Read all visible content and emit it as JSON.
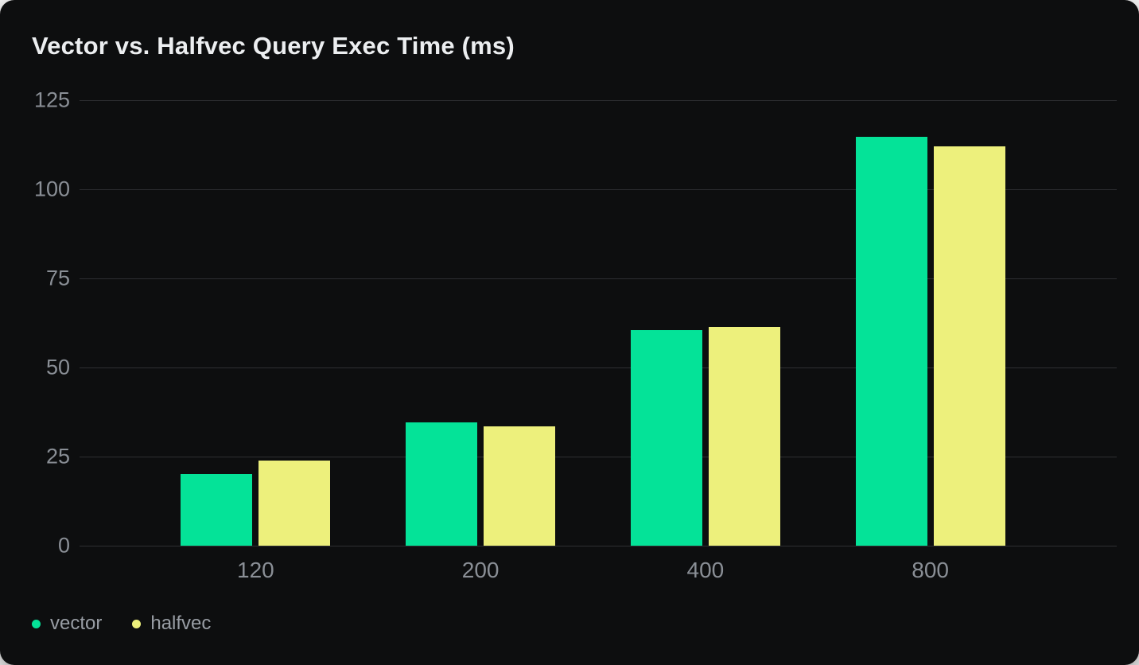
{
  "chart_data": {
    "type": "bar",
    "title": "Vector vs. Halfvec Query Exec Time (ms)",
    "xlabel": "",
    "ylabel": "",
    "categories": [
      "120",
      "200",
      "400",
      "800"
    ],
    "series": [
      {
        "name": "vector",
        "color": "#04e398",
        "values": [
          20.2,
          34.5,
          60.4,
          114.8
        ]
      },
      {
        "name": "halfvec",
        "color": "#edf07c",
        "values": [
          23.9,
          33.4,
          61.4,
          112.1
        ]
      }
    ],
    "ylim": [
      0,
      125
    ],
    "yticks": [
      0,
      25,
      50,
      75,
      100,
      125
    ],
    "grid": true,
    "legend_position": "bottom-left"
  },
  "colors": {
    "card_background": "#0d0e0f",
    "page_background": "#ffffff",
    "gridline": "#2e2f32",
    "axis_text": "#8a8f96",
    "legend_text": "#999ea5",
    "title_text": "#eceef0",
    "series_vector": "#04e398",
    "series_halfvec": "#edf07c"
  }
}
